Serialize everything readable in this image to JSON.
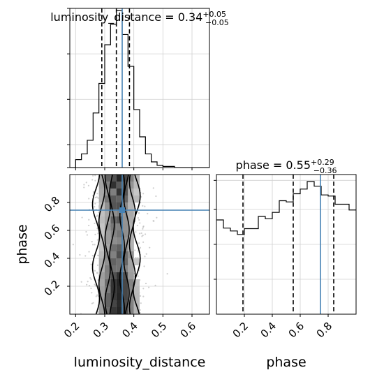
{
  "chart_data": {
    "type": "corner",
    "parameters": [
      "luminosity_distance",
      "phase"
    ],
    "truth": {
      "luminosity_distance": 0.36,
      "phase": 0.745
    },
    "grid": true,
    "marginals": [
      {
        "name": "luminosity_distance-marginal",
        "type": "step-histogram",
        "title": {
          "prefix": "luminosity_distance = ",
          "median": "0.34",
          "plus": "+0.05",
          "minus": "−0.05"
        },
        "x_range": [
          0.18,
          0.66
        ],
        "y_range": [
          0,
          140
        ],
        "bin_edges": [
          0.18,
          0.2,
          0.22,
          0.24,
          0.26,
          0.28,
          0.3,
          0.32,
          0.34,
          0.36,
          0.38,
          0.4,
          0.42,
          0.44,
          0.46,
          0.48,
          0.5,
          0.52,
          0.54,
          0.56,
          0.58,
          0.6,
          0.62,
          0.64,
          0.66
        ],
        "counts": [
          0,
          7,
          12,
          24,
          48,
          74,
          108,
          126,
          138,
          117,
          89,
          51,
          27,
          12,
          5,
          2,
          1,
          1,
          0,
          0,
          0,
          0,
          0,
          0
        ],
        "quantiles": [
          0.29,
          0.34,
          0.385
        ]
      },
      {
        "name": "phase-marginal",
        "type": "step-histogram",
        "title": {
          "prefix": "phase = ",
          "median": "0.55",
          "plus": "+0.29",
          "minus": "−0.36"
        },
        "x_range": [
          0.0,
          1.0
        ],
        "y_range": [
          0,
          240
        ],
        "bin_edges": [
          0.0,
          0.05,
          0.1,
          0.15,
          0.2,
          0.25,
          0.3,
          0.35,
          0.4,
          0.45,
          0.5,
          0.55,
          0.6,
          0.65,
          0.7,
          0.75,
          0.8,
          0.85,
          0.9,
          0.95,
          1.0
        ],
        "counts": [
          162,
          148,
          143,
          137,
          147,
          147,
          168,
          164,
          175,
          195,
          193,
          207,
          215,
          228,
          220,
          205,
          203,
          189,
          189,
          179
        ],
        "quantiles": [
          0.19,
          0.55,
          0.84
        ]
      }
    ],
    "joint": {
      "name": "joint-luminosity_distance-phase",
      "x": "luminosity_distance",
      "y": "phase",
      "x_range": [
        0.18,
        0.66
      ],
      "y_range": [
        0.0,
        1.0
      ],
      "x_ticks": [
        0.2,
        0.3,
        0.4,
        0.5,
        0.6
      ],
      "y_ticks": [
        0.2,
        0.4,
        0.6,
        0.8
      ]
    },
    "phase_ticks": [
      0.2,
      0.4,
      0.6,
      0.8
    ],
    "xlabels": [
      "luminosity_distance",
      "phase"
    ],
    "ylabel": "phase"
  }
}
